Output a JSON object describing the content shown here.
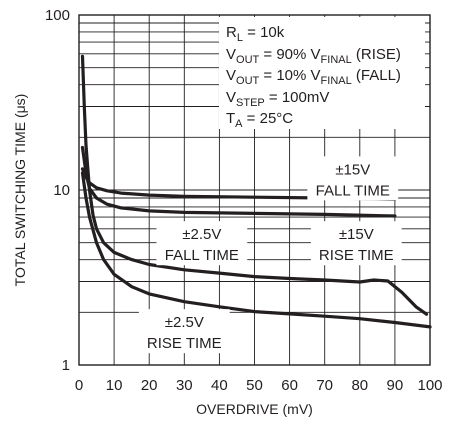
{
  "chart_data": {
    "type": "line",
    "xlabel": "OVERDRIVE (mV)",
    "ylabel": "TOTAL SWITCHING TIME (μs)",
    "xlim": [
      0,
      100
    ],
    "ylim": [
      1,
      100
    ],
    "yscale": "log",
    "grid": true,
    "x_ticks": [
      "0",
      "10",
      "20",
      "30",
      "40",
      "50",
      "60",
      "70",
      "80",
      "90",
      "100"
    ],
    "y_ticks": [
      {
        "value": 100,
        "label": "100"
      },
      {
        "value": 10,
        "label": "10"
      },
      {
        "value": 1,
        "label": "1"
      }
    ],
    "conditions": {
      "rl": {
        "main": "R",
        "sub": "L",
        "rest": " = 10k"
      },
      "vout_rise": {
        "main": "V",
        "sub": "OUT",
        "mid": " = 90% V",
        "sub2": "FINAL",
        "rest": " (RISE)"
      },
      "vout_fall": {
        "main": "V",
        "sub": "OUT",
        "mid": " = 10% V",
        "sub2": "FINAL",
        "rest": " (FALL)"
      },
      "vstep": {
        "main": "V",
        "sub": "STEP",
        "rest": " = 100mV"
      },
      "ta": {
        "main": "T",
        "sub": "A",
        "rest": " = 25°C"
      }
    },
    "series": [
      {
        "label_lines": [
          "±15V",
          "FALL TIME"
        ],
        "label_pos": [
          78,
          11.5
        ],
        "points": [
          [
            1,
            13.2
          ],
          [
            2,
            11.8
          ],
          [
            3,
            11.0
          ],
          [
            5,
            10.3
          ],
          [
            8,
            9.9
          ],
          [
            12,
            9.6
          ],
          [
            20,
            9.35
          ],
          [
            30,
            9.2
          ],
          [
            50,
            9.1
          ],
          [
            70,
            9.0
          ],
          [
            90,
            8.85
          ]
        ]
      },
      {
        "label_lines": [
          "±15V",
          "RISE TIME"
        ],
        "label_pos": [
          79,
          4.9
        ],
        "points": [
          [
            1,
            17.5
          ],
          [
            2,
            12.5
          ],
          [
            3,
            10.2
          ],
          [
            5,
            9.0
          ],
          [
            8,
            8.3
          ],
          [
            12,
            7.9
          ],
          [
            20,
            7.6
          ],
          [
            30,
            7.45
          ],
          [
            50,
            7.35
          ],
          [
            70,
            7.25
          ],
          [
            90,
            7.1
          ]
        ]
      },
      {
        "label_lines": [
          "±2.5V",
          "FALL TIME"
        ],
        "label_pos": [
          35,
          4.9
        ],
        "points": [
          [
            1,
            58
          ],
          [
            1.5,
            30
          ],
          [
            2,
            18
          ],
          [
            3,
            10
          ],
          [
            4,
            7.2
          ],
          [
            5,
            6.0
          ],
          [
            7,
            5.0
          ],
          [
            10,
            4.4
          ],
          [
            15,
            4.0
          ],
          [
            20,
            3.75
          ],
          [
            30,
            3.5
          ],
          [
            40,
            3.35
          ],
          [
            50,
            3.2
          ],
          [
            60,
            3.12
          ],
          [
            70,
            3.06
          ],
          [
            80,
            2.98
          ],
          [
            84,
            3.06
          ],
          [
            88,
            3.02
          ],
          [
            92,
            2.6
          ],
          [
            96,
            2.15
          ],
          [
            99,
            1.95
          ]
        ]
      },
      {
        "label_lines": [
          "±2.5V",
          "RISE TIME"
        ],
        "label_pos": [
          30,
          1.54
        ],
        "points": [
          [
            1,
            12.5
          ],
          [
            2,
            9.0
          ],
          [
            3,
            7.0
          ],
          [
            5,
            5.0
          ],
          [
            7,
            4.0
          ],
          [
            10,
            3.3
          ],
          [
            15,
            2.8
          ],
          [
            20,
            2.55
          ],
          [
            30,
            2.3
          ],
          [
            40,
            2.15
          ],
          [
            50,
            2.02
          ],
          [
            60,
            1.96
          ],
          [
            70,
            1.9
          ],
          [
            80,
            1.84
          ],
          [
            90,
            1.75
          ],
          [
            100,
            1.65
          ]
        ]
      }
    ]
  }
}
